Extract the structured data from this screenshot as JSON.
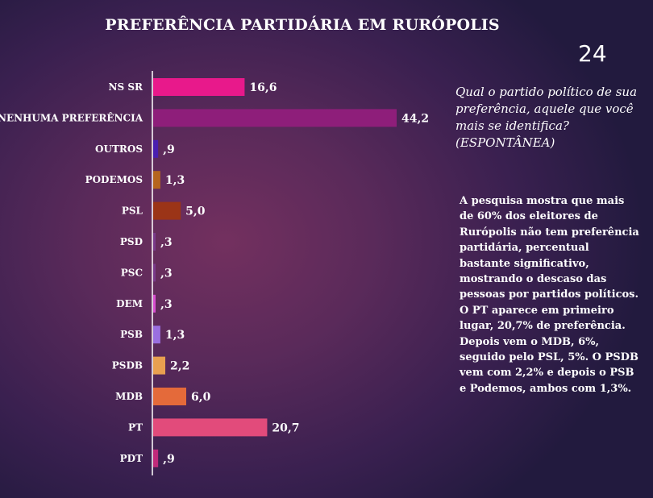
{
  "slide_number": "24",
  "question": "Qual  o partido político de sua preferência, aquele que você mais se identifica? (ESPONTÂNEA)",
  "description": "A pesquisa mostra que mais de 60% dos eleitores de Rurópolis não tem preferência partidária, percentual bastante significativo, mostrando o descaso das pessoas por partidos políticos. O PT aparece em primeiro lugar, 20,7% de preferência. Depois vem o MDB, 6%, seguido pelo PSL, 5%. O PSDB vem com 2,2% e depois o PSB e Podemos, ambos com 1,3%.",
  "chart_data": {
    "type": "bar",
    "orientation": "horizontal",
    "title": "PREFERÊNCIA PARTIDÁRIA EM RURÓPOLIS",
    "categories": [
      "NS SR",
      "NENHUMA PREFERÊNCIA",
      "OUTROS",
      "PODEMOS",
      "PSL",
      "PSD",
      "PSC",
      "DEM",
      "PSB",
      "PSDB",
      "MDB",
      "PT",
      "PDT"
    ],
    "values": [
      16.6,
      44.2,
      0.9,
      1.3,
      5.0,
      0.3,
      0.3,
      0.3,
      1.3,
      2.2,
      6.0,
      20.7,
      0.9
    ],
    "value_labels": [
      "16,6",
      "44,2",
      ",9",
      "1,3",
      "5,0",
      ",3",
      ",3",
      ",3",
      "1,3",
      "2,2",
      "6,0",
      "20,7",
      ",9"
    ],
    "colors": [
      "#e8198b",
      "#8e1e7a",
      "#4a1fb0",
      "#b5651d",
      "#9b3417",
      "#7a3a8a",
      "#7a3a8a",
      "#d84fd0",
      "#9a6fe0",
      "#e8a050",
      "#e46a3a",
      "#e24b7b",
      "#c02a7a"
    ],
    "xlim": [
      0,
      44.2
    ],
    "grid": false,
    "legend": "none"
  }
}
